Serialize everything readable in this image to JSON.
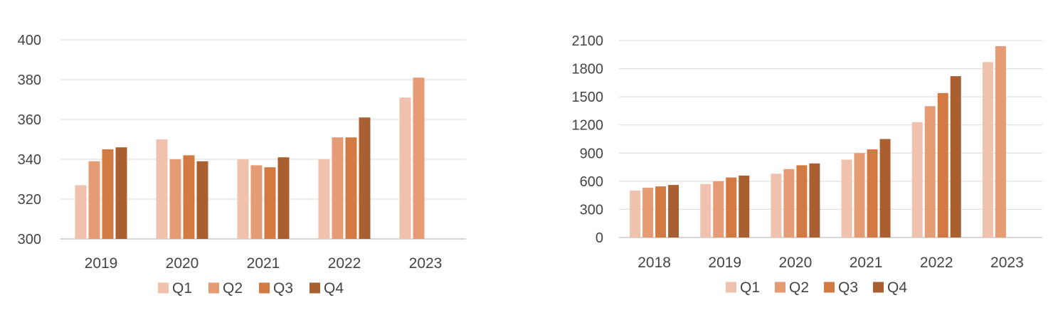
{
  "colors": {
    "Q1": "#f0c2ae",
    "Q2": "#e59b74",
    "Q3": "#d37a42",
    "Q4": "#a95f2f"
  },
  "chart_data": [
    {
      "type": "bar",
      "title": "",
      "xlabel": "",
      "ylabel": "",
      "categories": [
        "2019",
        "2020",
        "2021",
        "2022",
        "2023"
      ],
      "ylim": [
        300,
        400
      ],
      "yticks": [
        300,
        320,
        340,
        360,
        380,
        400
      ],
      "grid": true,
      "legend": "bottom",
      "series": [
        {
          "name": "Q1",
          "values": [
            327,
            350,
            340,
            340,
            371
          ]
        },
        {
          "name": "Q2",
          "values": [
            339,
            340,
            337,
            351,
            381
          ]
        },
        {
          "name": "Q3",
          "values": [
            345,
            342,
            336,
            351,
            null
          ]
        },
        {
          "name": "Q4",
          "values": [
            346,
            339,
            341,
            361,
            null
          ]
        }
      ]
    },
    {
      "type": "bar",
      "title": "",
      "xlabel": "",
      "ylabel": "",
      "categories": [
        "2018",
        "2019",
        "2020",
        "2021",
        "2022",
        "2023"
      ],
      "ylim": [
        0,
        2100
      ],
      "yticks": [
        0,
        300,
        600,
        900,
        1200,
        1500,
        1800,
        2100
      ],
      "grid": true,
      "legend": "bottom",
      "series": [
        {
          "name": "Q1",
          "values": [
            500,
            570,
            680,
            830,
            1230,
            1870
          ]
        },
        {
          "name": "Q2",
          "values": [
            530,
            600,
            730,
            900,
            1400,
            2040
          ]
        },
        {
          "name": "Q3",
          "values": [
            545,
            640,
            770,
            940,
            1540,
            null
          ]
        },
        {
          "name": "Q4",
          "values": [
            560,
            660,
            790,
            1050,
            1720,
            null
          ]
        }
      ]
    }
  ]
}
